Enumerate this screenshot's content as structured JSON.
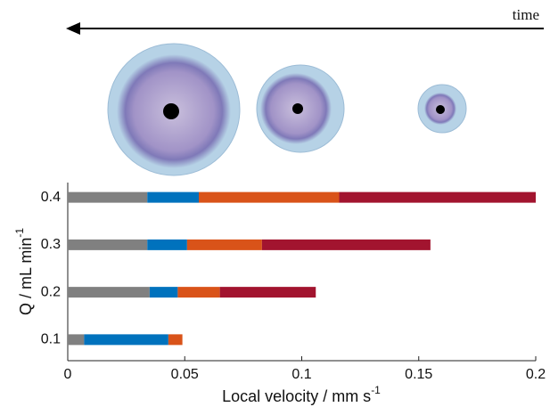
{
  "chart_data": {
    "type": "bar",
    "orientation": "horizontal",
    "stacked": true,
    "annotation": "time",
    "categories": [
      "0.1",
      "0.2",
      "0.3",
      "0.4"
    ],
    "series": [
      {
        "color": "#808080",
        "values": [
          0.007,
          0.035,
          0.034,
          0.034
        ]
      },
      {
        "color": "#0072bd",
        "values": [
          0.036,
          0.012,
          0.017,
          0.022
        ]
      },
      {
        "color": "#d95319",
        "values": [
          0.006,
          0.018,
          0.032,
          0.06
        ]
      },
      {
        "color": "#a2142f",
        "values": [
          0,
          0.041,
          0.072,
          0.084
        ]
      }
    ],
    "xlim": [
      0,
      0.2
    ],
    "xticks": [
      0,
      0.05,
      0.1,
      0.15,
      0.2
    ],
    "xlabel": {
      "text": "Local velocity / mm s",
      "superscript": "-1"
    },
    "ylabel": {
      "text": "Q / mL min",
      "superscript": "-1"
    }
  }
}
